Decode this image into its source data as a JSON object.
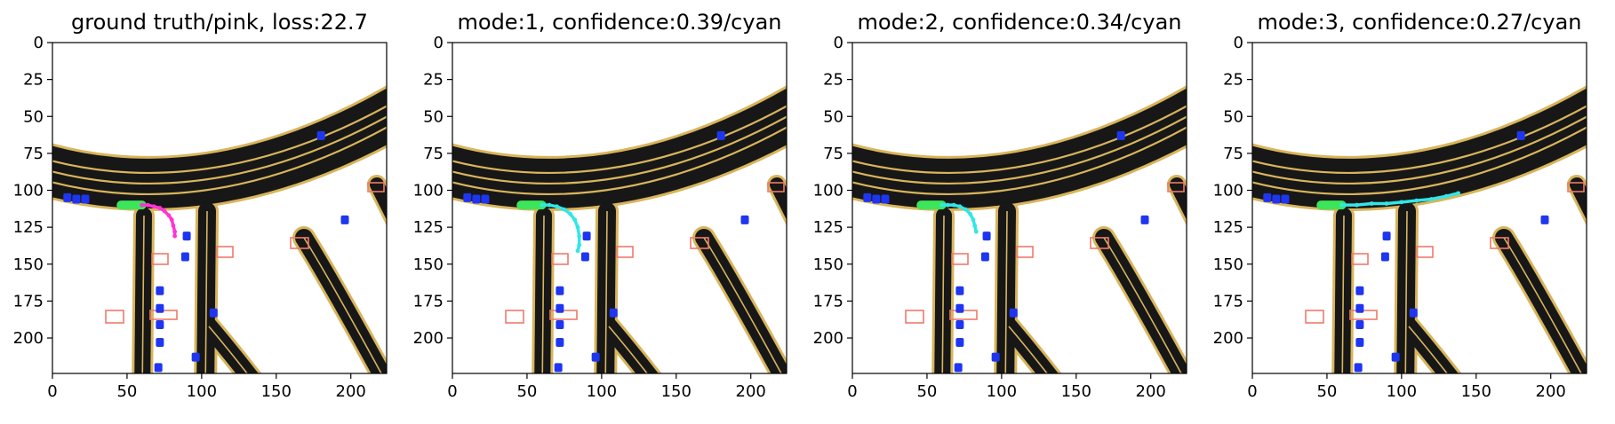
{
  "figure": {
    "panels": [
      {
        "title": "ground truth/pink, loss:22.7",
        "pred_color": "#ff33d6",
        "mode": "gt"
      },
      {
        "title": "mode:1, confidence:0.39/cyan",
        "pred_color": "#33e6e6",
        "mode": "m1"
      },
      {
        "title": "mode:2, confidence:0.34/cyan",
        "pred_color": "#33e6e6",
        "mode": "m2"
      },
      {
        "title": "mode:3, confidence:0.27/cyan",
        "pred_color": "#33e6e6",
        "mode": "m3"
      }
    ],
    "colors": {
      "road": "#171717",
      "road_border": "#d8b55c",
      "lane_line": "#d8b55c",
      "agent": "#1f36f0",
      "ego": "#3be65a",
      "crosswalk": "#ef7b6a"
    }
  },
  "chart_data": {
    "type": "image",
    "xlim": [
      0,
      224
    ],
    "ylim": [
      224,
      0
    ],
    "xticks": [
      0,
      50,
      100,
      150,
      200
    ],
    "yticks": [
      0,
      25,
      50,
      75,
      100,
      125,
      150,
      175,
      200
    ],
    "ego_history": {
      "x": [
        46,
        50,
        54,
        57,
        60
      ],
      "y": [
        110,
        110,
        110,
        110,
        110
      ]
    },
    "trajectories": {
      "gt": {
        "x": [
          60,
          64,
          68,
          72,
          75,
          78,
          80,
          81,
          82,
          82
        ],
        "y": [
          110,
          110,
          111,
          112,
          114,
          117,
          120,
          124,
          128,
          131
        ]
      },
      "m1": {
        "x": [
          60,
          65,
          70,
          75,
          79,
          82,
          84,
          85,
          85,
          84
        ],
        "y": [
          110,
          110,
          111,
          113,
          116,
          120,
          125,
          131,
          137,
          141
        ]
      },
      "m2": {
        "x": [
          60,
          64,
          68,
          72,
          76,
          79,
          81,
          82,
          83
        ],
        "y": [
          110,
          110,
          110,
          111,
          113,
          116,
          120,
          124,
          128
        ]
      },
      "m3": {
        "x": [
          60,
          70,
          80,
          90,
          100,
          110,
          120,
          130,
          138
        ],
        "y": [
          110,
          110,
          109,
          109,
          108,
          107,
          106,
          104,
          102
        ]
      }
    },
    "agents": [
      {
        "x": 10,
        "y": 105
      },
      {
        "x": 16,
        "y": 106
      },
      {
        "x": 22,
        "y": 106
      },
      {
        "x": 90,
        "y": 131
      },
      {
        "x": 89,
        "y": 145
      },
      {
        "x": 72,
        "y": 168
      },
      {
        "x": 72,
        "y": 180
      },
      {
        "x": 72,
        "y": 191
      },
      {
        "x": 72,
        "y": 203
      },
      {
        "x": 108,
        "y": 183
      },
      {
        "x": 96,
        "y": 213
      },
      {
        "x": 71,
        "y": 220
      },
      {
        "x": 180,
        "y": 63
      },
      {
        "x": 196,
        "y": 120
      }
    ]
  }
}
